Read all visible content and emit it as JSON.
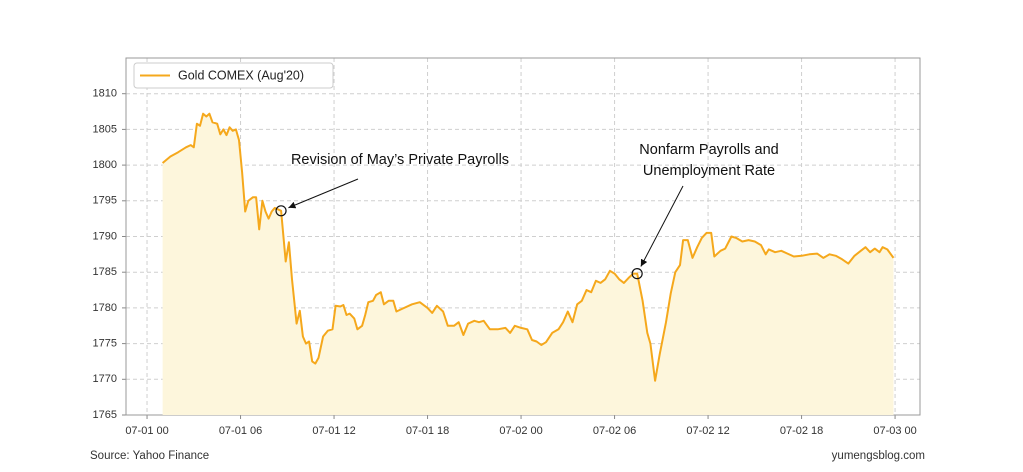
{
  "chart_data": {
    "type": "line",
    "series": [
      {
        "name": "Gold COMEX (Aug'20)",
        "color": "#f5a81c",
        "fill": "#fdf6dc",
        "x": [
          1.0,
          1.5,
          2.0,
          2.5,
          2.8,
          3.0,
          3.2,
          3.4,
          3.6,
          3.8,
          4.0,
          4.2,
          4.5,
          4.7,
          4.9,
          5.1,
          5.3,
          5.5,
          5.7,
          5.9,
          6.1,
          6.3,
          6.5,
          6.8,
          7.0,
          7.2,
          7.4,
          7.6,
          7.8,
          8.0,
          8.2,
          8.6,
          8.9,
          9.1,
          9.3,
          9.6,
          9.8,
          10.0,
          10.2,
          10.4,
          10.6,
          10.8,
          11.0,
          11.3,
          11.6,
          11.9,
          12.1,
          12.4,
          12.6,
          12.8,
          13.0,
          13.3,
          13.5,
          13.8,
          14.0,
          14.2,
          14.5,
          14.7,
          15.0,
          15.2,
          15.5,
          15.8,
          16.0,
          16.5,
          17.0,
          17.5,
          18.0,
          18.3,
          18.6,
          19.0,
          19.3,
          19.7,
          20.0,
          20.3,
          20.6,
          21.0,
          21.3,
          21.6,
          22.0,
          22.5,
          23.0,
          23.3,
          23.6,
          24.0,
          24.4,
          24.7,
          25.0,
          25.3,
          25.6,
          26.0,
          26.4,
          26.7,
          27.0,
          27.3,
          27.6,
          27.9,
          28.2,
          28.5,
          28.8,
          29.1,
          29.4,
          29.7,
          30.0,
          30.3,
          30.6,
          30.9,
          31.2,
          31.45,
          31.8,
          32.1,
          32.3,
          32.6,
          32.9,
          33.3,
          33.6,
          33.9,
          34.2,
          34.4,
          34.7,
          35.0,
          35.3,
          35.6,
          35.9,
          36.2,
          36.4,
          36.8,
          37.1,
          37.5,
          37.8,
          38.2,
          38.6,
          39.0,
          39.4,
          39.7,
          39.9,
          40.3,
          40.7,
          41.1,
          41.5,
          42.0,
          42.5,
          43.0,
          43.4,
          43.8,
          44.2,
          44.6,
          45.0,
          45.4,
          45.8,
          46.1,
          46.4,
          46.7,
          47.0,
          47.2,
          47.5,
          47.9
        ],
        "values": [
          1800.3,
          1801.2,
          1801.8,
          1802.5,
          1802.8,
          1802.5,
          1805.8,
          1805.5,
          1807.2,
          1806.8,
          1807.2,
          1806,
          1805.8,
          1804.3,
          1805,
          1804.2,
          1805.3,
          1804.8,
          1805,
          1803.5,
          1799,
          1793.5,
          1795,
          1795.5,
          1795.5,
          1791,
          1795,
          1793.5,
          1792.5,
          1793.5,
          1794,
          1793.6,
          1786.5,
          1789.2,
          1784,
          1777.8,
          1779.6,
          1776,
          1775,
          1775.3,
          1772.5,
          1772.2,
          1773,
          1776,
          1776.8,
          1777,
          1780.3,
          1780.2,
          1780.4,
          1779,
          1779.2,
          1778.5,
          1777,
          1777.5,
          1779,
          1780.8,
          1781,
          1781.8,
          1782.2,
          1780.5,
          1781,
          1781,
          1779.5,
          1780,
          1780.5,
          1780.8,
          1780,
          1779.3,
          1780.3,
          1779.5,
          1777.5,
          1777.5,
          1778,
          1776.2,
          1777.8,
          1778.2,
          1778,
          1778.2,
          1777,
          1777,
          1777.2,
          1776.5,
          1777.5,
          1777.2,
          1777,
          1775.5,
          1775.3,
          1774.8,
          1775.2,
          1776.5,
          1777,
          1778,
          1779.5,
          1778,
          1780.5,
          1781,
          1782.5,
          1782.2,
          1783.8,
          1783.5,
          1784,
          1785.2,
          1784.8,
          1784,
          1783.5,
          1784.2,
          1784.8,
          1784.8,
          1781,
          1776.5,
          1775,
          1769.8,
          1773.5,
          1778,
          1782,
          1785,
          1786,
          1789.5,
          1789.5,
          1787,
          1788.5,
          1789.8,
          1790.5,
          1790.5,
          1787.2,
          1788,
          1788.3,
          1790,
          1789.8,
          1789.3,
          1789.5,
          1789.3,
          1788.8,
          1787.5,
          1788.2,
          1787.8,
          1788,
          1787.6,
          1787.2,
          1787.3,
          1787.5,
          1787.6,
          1787,
          1787.5,
          1787.3,
          1786.8,
          1786.2,
          1787.3,
          1788,
          1788.5,
          1787.8,
          1788.3,
          1787.8,
          1788.5,
          1788.2,
          1787
        ]
      }
    ],
    "xlim": [
      -1.35,
      49.6
    ],
    "ylim": [
      1765,
      1815
    ],
    "xticks": [
      {
        "value": 0,
        "label": "07-01 00"
      },
      {
        "value": 6,
        "label": "07-01 06"
      },
      {
        "value": 12,
        "label": "07-01 12"
      },
      {
        "value": 18,
        "label": "07-01 18"
      },
      {
        "value": 24,
        "label": "07-02 00"
      },
      {
        "value": 30,
        "label": "07-02 06"
      },
      {
        "value": 36,
        "label": "07-02 12"
      },
      {
        "value": 42,
        "label": "07-02 18"
      },
      {
        "value": 48,
        "label": "07-03 00"
      }
    ],
    "yticks": [
      1765,
      1770,
      1775,
      1780,
      1785,
      1790,
      1795,
      1800,
      1805,
      1810
    ],
    "grid": true,
    "legend": "upper left",
    "annotations": [
      {
        "text": [
          "Revision of May’s Private Payrolls"
        ],
        "x": 8.6,
        "y": 1793.6
      },
      {
        "text": [
          "Nonfarm Payrolls and",
          "Unemployment Rate"
        ],
        "x": 31.45,
        "y": 1784.8
      }
    ],
    "source": "Source: Yahoo Finance",
    "credit": "yumengsblog.com"
  }
}
